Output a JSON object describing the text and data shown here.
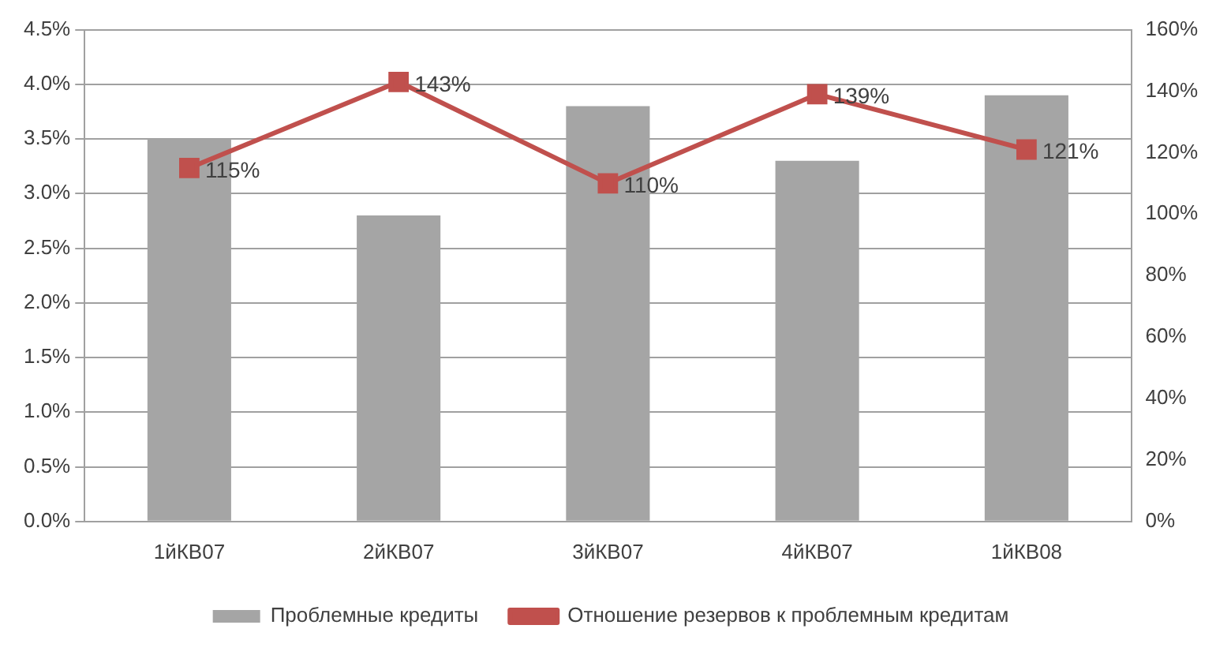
{
  "chart_data": {
    "type": "bar",
    "categories": [
      "1йКВ07",
      "2йКВ07",
      "3йКВ07",
      "4йКВ07",
      "1йКВ08"
    ],
    "series": [
      {
        "name": "Проблемные кредиты",
        "color": "#a5a5a5",
        "values": [
          3.5,
          2.8,
          3.8,
          3.3,
          3.9
        ]
      },
      {
        "name": "Отношение резервов к проблемным кредитам",
        "type": "line",
        "axis": "y2",
        "color": "#c0504d",
        "values": [
          115,
          143,
          110,
          139,
          121
        ],
        "value_labels": [
          "115%",
          "143%",
          "110%",
          "139%",
          "121%"
        ],
        "marker": "square"
      }
    ],
    "ylim": [
      0,
      4.5
    ],
    "yticks": [
      {
        "value": 0,
        "label": "0.0%"
      },
      {
        "value": 0.5,
        "label": "0.5%"
      },
      {
        "value": 1,
        "label": "1.0%"
      },
      {
        "value": 1.5,
        "label": "1.5%"
      },
      {
        "value": 2,
        "label": "2.0%"
      },
      {
        "value": 2.5,
        "label": "2.5%"
      },
      {
        "value": 3,
        "label": "3.0%"
      },
      {
        "value": 3.5,
        "label": "3.5%"
      },
      {
        "value": 4,
        "label": "4.0%"
      },
      {
        "value": 4.5,
        "label": "4.5%"
      }
    ],
    "y2lim": [
      0,
      160
    ],
    "y2ticks": [
      {
        "value": 0,
        "label": "0%"
      },
      {
        "value": 20,
        "label": "20%"
      },
      {
        "value": 40,
        "label": "40%"
      },
      {
        "value": 60,
        "label": "60%"
      },
      {
        "value": 80,
        "label": "80%"
      },
      {
        "value": 100,
        "label": "100%"
      },
      {
        "value": 120,
        "label": "120%"
      },
      {
        "value": 140,
        "label": "140%"
      },
      {
        "value": 160,
        "label": "160%"
      }
    ],
    "grid": "y",
    "legend": "bottom"
  }
}
